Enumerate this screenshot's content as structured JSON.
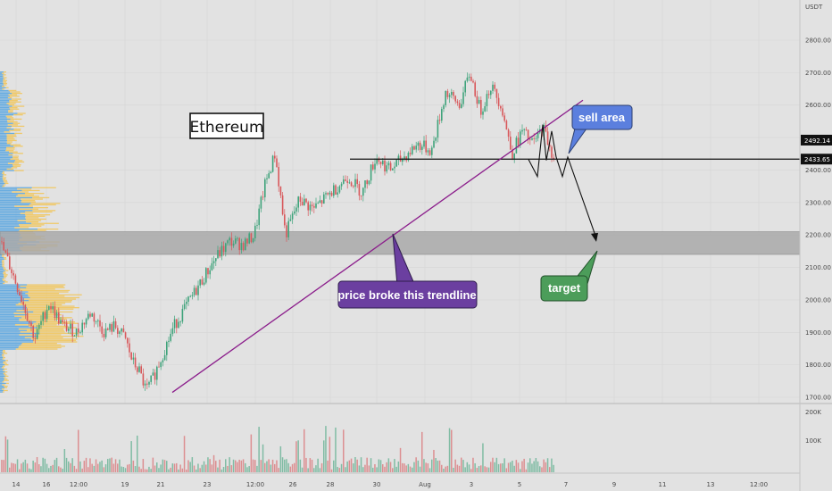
{
  "chart_data": {
    "type": "candlestick",
    "title": "Ethereum",
    "currency_label": "USDT",
    "y_ticks": [
      1700,
      1800,
      1900,
      2000,
      2100,
      2200,
      2300,
      2400,
      2500,
      2600,
      2700,
      2800
    ],
    "y_tick_labels": [
      "1700.00",
      "1800.00",
      "1900.00",
      "2000.00",
      "2100.00",
      "2200.00",
      "2300.00",
      "2400.00",
      "2500.00",
      "2600.00",
      "2700.00",
      "2800.00"
    ],
    "ylim": [
      1680,
      2900
    ],
    "x_tick_labels": [
      "14",
      "16",
      "12:00",
      "19",
      "21",
      "23",
      "12:00",
      "26",
      "28",
      "30",
      "Aug",
      "3",
      "5",
      "7",
      "9",
      "11",
      "13",
      "12:00"
    ],
    "volume_ticks": [
      "200K",
      "100K"
    ],
    "price_tags": [
      {
        "label": "2492.14",
        "value": 2492.14
      },
      {
        "label": "2433.65",
        "value": 2433.65
      }
    ],
    "price_path": [
      [
        0,
        2180
      ],
      [
        0.03,
        2100
      ],
      [
        0.07,
        1980
      ],
      [
        0.1,
        1880
      ],
      [
        0.14,
        1990
      ],
      [
        0.18,
        1920
      ],
      [
        0.22,
        1900
      ],
      [
        0.26,
        1960
      ],
      [
        0.3,
        1900
      ],
      [
        0.33,
        1920
      ],
      [
        0.36,
        1880
      ],
      [
        0.38,
        1810
      ],
      [
        0.4,
        1780
      ],
      [
        0.42,
        1720
      ],
      [
        0.44,
        1760
      ],
      [
        0.47,
        1840
      ],
      [
        0.5,
        1920
      ],
      [
        0.54,
        1990
      ],
      [
        0.58,
        2060
      ],
      [
        0.62,
        2130
      ],
      [
        0.66,
        2180
      ],
      [
        0.7,
        2170
      ],
      [
        0.73,
        2200
      ],
      [
        0.76,
        2350
      ],
      [
        0.79,
        2450
      ],
      [
        0.82,
        2200
      ],
      [
        0.86,
        2310
      ],
      [
        0.9,
        2280
      ],
      [
        0.95,
        2330
      ],
      [
        1.0,
        2380
      ],
      [
        1.04,
        2330
      ],
      [
        1.08,
        2440
      ],
      [
        1.12,
        2400
      ],
      [
        1.16,
        2440
      ],
      [
        1.2,
        2480
      ],
      [
        1.24,
        2460
      ],
      [
        1.28,
        2640
      ],
      [
        1.32,
        2600
      ],
      [
        1.35,
        2700
      ],
      [
        1.38,
        2580
      ],
      [
        1.41,
        2660
      ],
      [
        1.44,
        2600
      ],
      [
        1.47,
        2450
      ],
      [
        1.5,
        2520
      ],
      [
        1.53,
        2480
      ],
      [
        1.56,
        2530
      ],
      [
        1.59,
        2440
      ]
    ],
    "horizontal_line": {
      "value": 2433.65
    },
    "support_zone": {
      "from": 2140,
      "to": 2210
    },
    "trendline": [
      [
        1715,
        1745
      ],
      [
        2603,
        2615
      ]
    ],
    "projection": [
      2433,
      2380,
      2540,
      2430,
      2520,
      2440,
      2380,
      2440,
      2190
    ],
    "annotations": [
      {
        "text": "sell area",
        "color": "#5b7fde"
      },
      {
        "text": "price broke this trendline",
        "color": "#6b3fa0"
      },
      {
        "text": "target",
        "color": "#4c9d5a"
      }
    ]
  }
}
